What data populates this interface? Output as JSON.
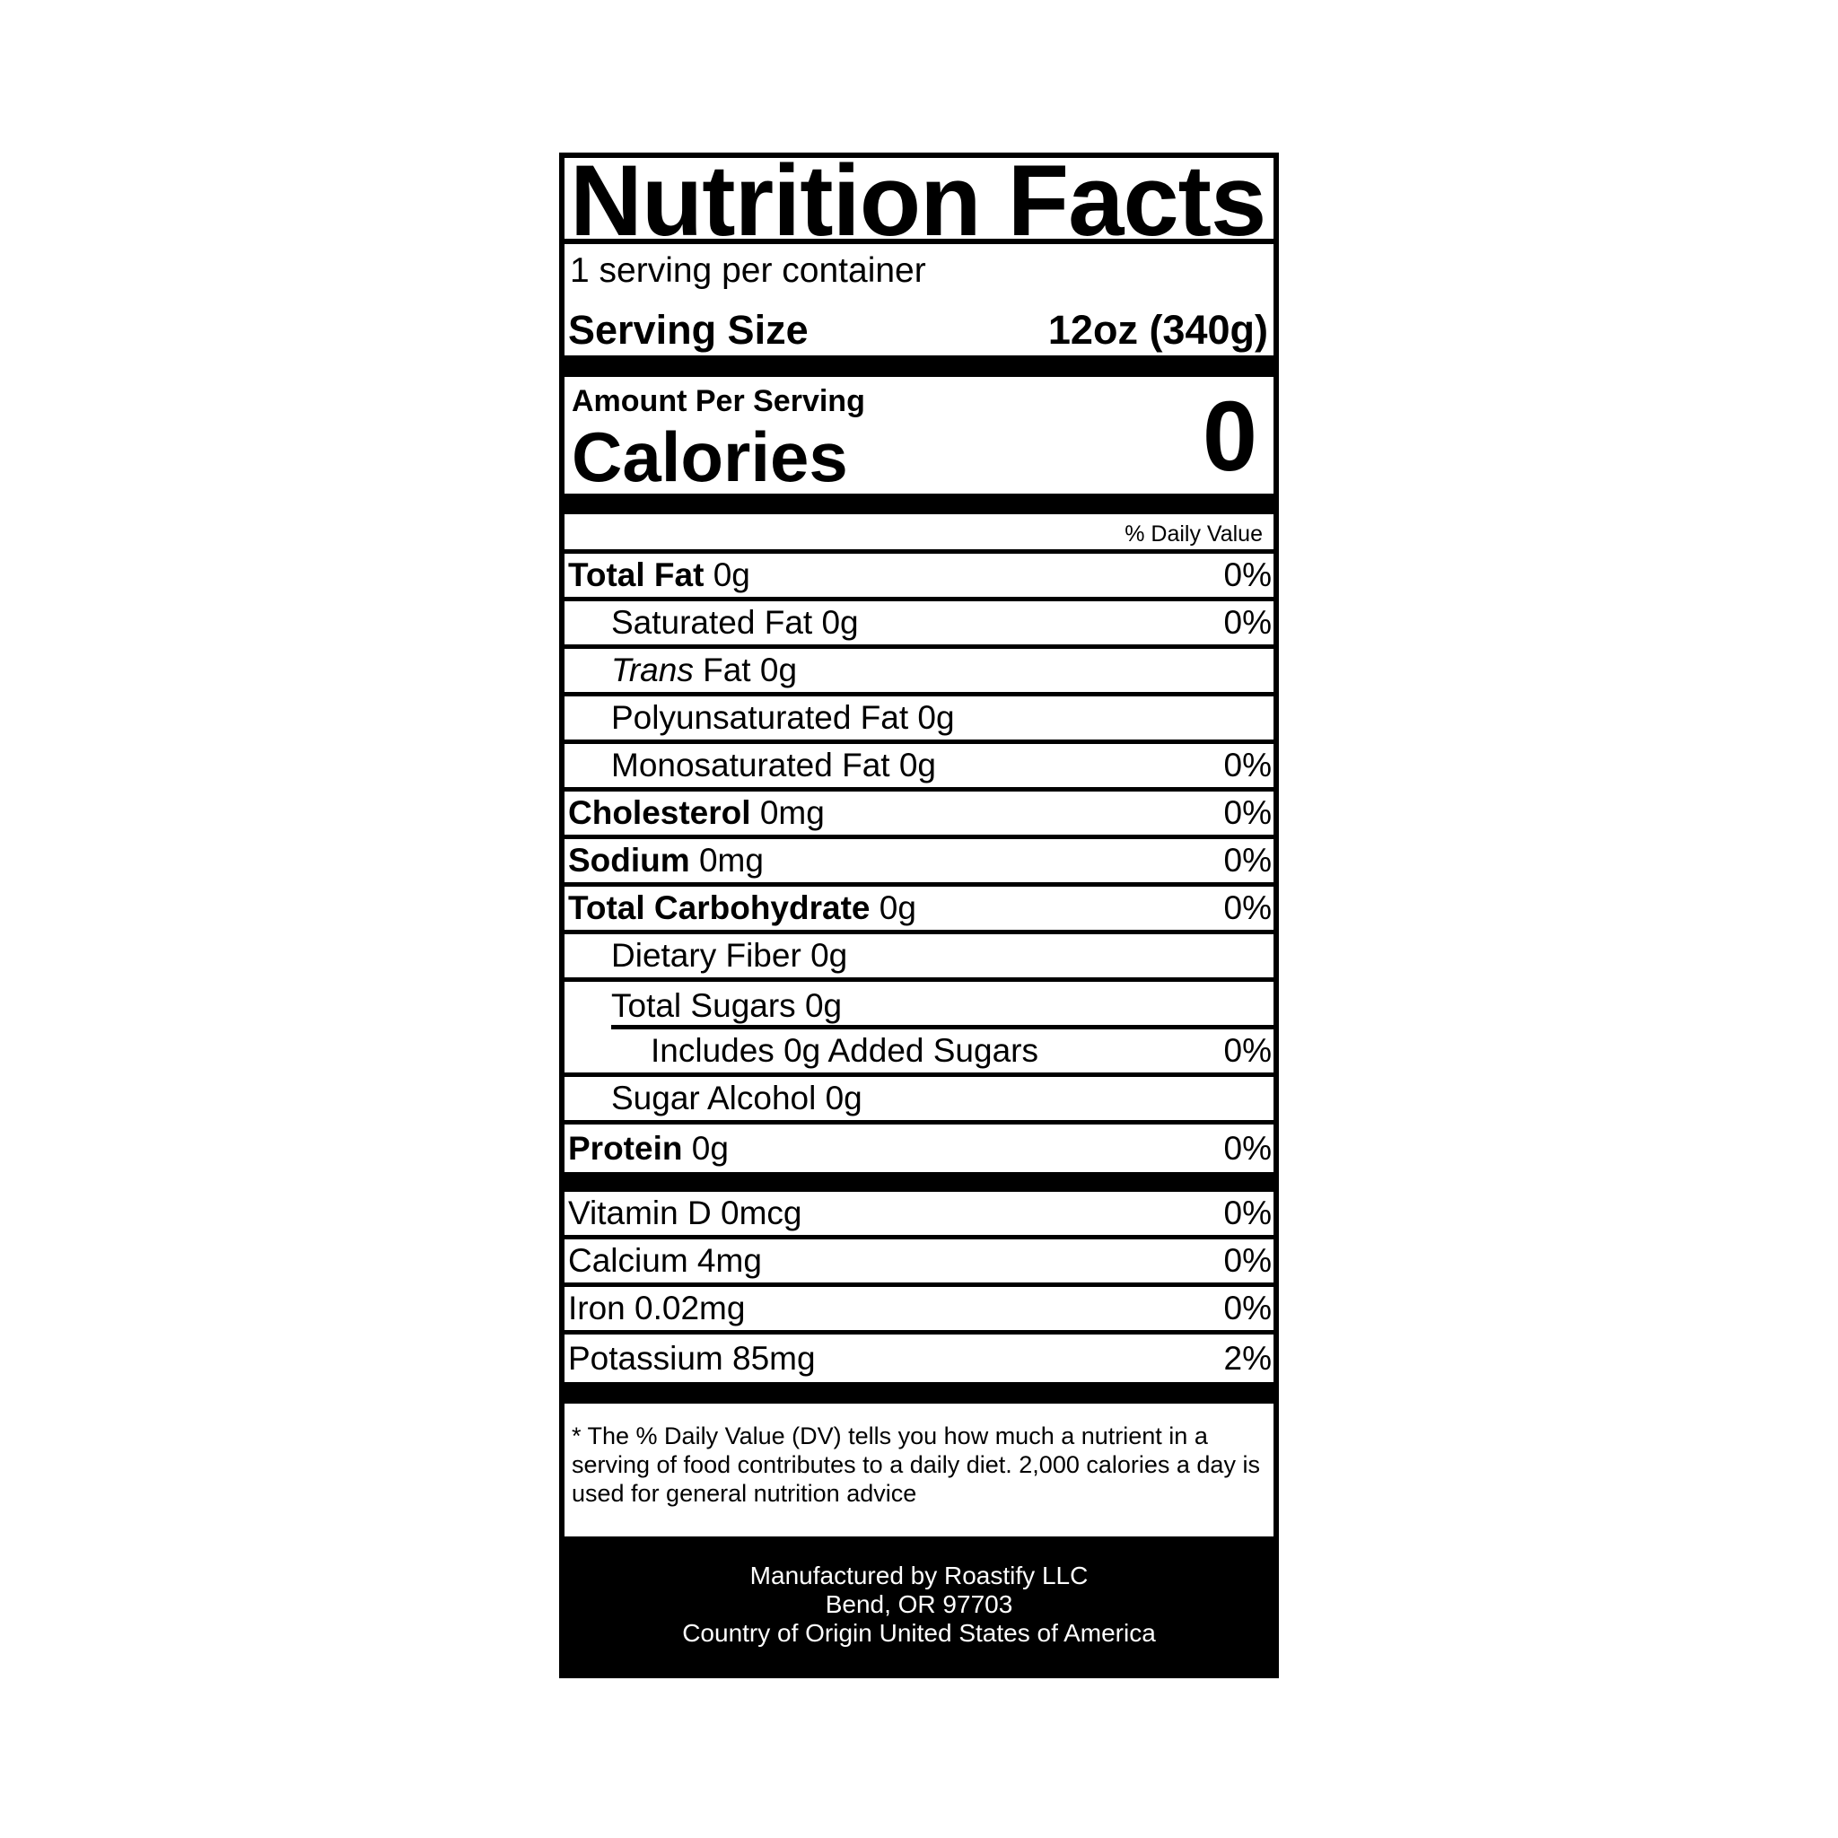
{
  "title": "Nutrition Facts",
  "servings_per_container": "1 serving per container",
  "serving_size": {
    "label": "Serving Size",
    "value": "12oz (340g)"
  },
  "amount_per_serving": "Amount Per Serving",
  "calories": {
    "label": "Calories",
    "value": "0"
  },
  "daily_value_header": "% Daily Value",
  "nutrients": [
    {
      "name": "Total Fat",
      "amount": "0g",
      "dv": "0%"
    },
    {
      "name": "Saturated Fat",
      "amount": "0g",
      "dv": "0%"
    },
    {
      "name_italic": "Trans",
      "name": "Fat",
      "amount": "0g",
      "dv": ""
    },
    {
      "name": "Polyunsaturated Fat",
      "amount": "0g",
      "dv": ""
    },
    {
      "name": "Monosaturated Fat",
      "amount": "0g",
      "dv": "0%"
    },
    {
      "name": "Cholesterol",
      "amount": "0mg",
      "dv": "0%"
    },
    {
      "name": "Sodium",
      "amount": "0mg",
      "dv": "0%"
    },
    {
      "name": "Total Carbohydrate",
      "amount": "0g",
      "dv": "0%"
    },
    {
      "name": "Dietary Fiber",
      "amount": "0g",
      "dv": ""
    },
    {
      "name": "Total Sugars",
      "amount": "0g",
      "dv": ""
    },
    {
      "name": "Includes 0g Added Sugars",
      "amount": "",
      "dv": "0%"
    },
    {
      "name": "Sugar Alcohol",
      "amount": "0g",
      "dv": ""
    },
    {
      "name": "Protein",
      "amount": "0g",
      "dv": "0%"
    }
  ],
  "vitamins": [
    {
      "name": "Vitamin D",
      "amount": "0mcg",
      "dv": "0%"
    },
    {
      "name": "Calcium",
      "amount": "4mg",
      "dv": "0%"
    },
    {
      "name": "Iron",
      "amount": "0.02mg",
      "dv": "0%"
    },
    {
      "name": "Potassium",
      "amount": "85mg",
      "dv": "2%"
    }
  ],
  "footnote": "* The % Daily Value (DV) tells you how much a nutrient in a serving of food contributes to a daily diet. 2,000 calories a day is used for general nutrition advice",
  "manufacturer": {
    "line1": "Manufactured by Roastify LLC",
    "line2": "Bend, OR 97703",
    "line3": "Country of Origin United States of America"
  }
}
